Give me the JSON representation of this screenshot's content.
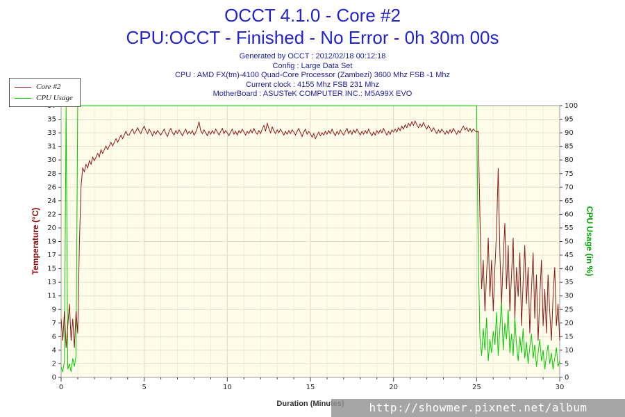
{
  "header": {
    "title_line1": "OCCT 4.1.0 - Core #2",
    "title_line2": "CPU:OCCT - Finished - No Error - 0h 30m 00s",
    "info_lines": [
      "Generated by OCCT : 2012/02/18 00:12:18",
      "Config : Large Data Set",
      "CPU : AMD FX(tm)-4100 Quad-Core Processor (Zambezi) 3600 Mhz FSB -1 Mhz",
      "Current clock : 4155 Mhz FSB 231 Mhz",
      "MotherBoard : ASUSTeK COMPUTER INC.: M5A99X EVO"
    ]
  },
  "legend": {
    "items": [
      {
        "label": "Core #2",
        "color": "#8b1a1a"
      },
      {
        "label": "CPU Usage",
        "color": "#00cc00"
      }
    ]
  },
  "watermark": {
    "text": "http://showmer.pixnet.net/album"
  },
  "chart_data": {
    "type": "line",
    "title": "OCCT 4.1.0 - Core #2",
    "subtitle": "CPU:OCCT - Finished - No Error - 0h 30m 00s",
    "plot_bg": "#fffdea",
    "grid": true,
    "legend_position": "top-left",
    "x_axis": {
      "label": "Duration (Minutes)",
      "min": 0,
      "max": 30,
      "major_ticks": [
        0,
        5,
        10,
        15,
        20,
        25,
        30
      ],
      "minor_step": 1
    },
    "y_left": {
      "label": "Temperature (°C)",
      "min": 0,
      "max": 37,
      "color": "#8b0000",
      "ticks": [
        0,
        2,
        4,
        6,
        7,
        9,
        11,
        13,
        15,
        17,
        19,
        20,
        22,
        24,
        26,
        28,
        30,
        31,
        33,
        35,
        37
      ]
    },
    "y_right": {
      "label": "CPU Usage (in %)",
      "min": 0,
      "max": 100,
      "color": "#00a400",
      "ticks": [
        0,
        5,
        10,
        15,
        20,
        25,
        30,
        35,
        40,
        45,
        50,
        55,
        60,
        65,
        70,
        75,
        80,
        85,
        90,
        95,
        100
      ]
    },
    "series": [
      {
        "name": "Core #2",
        "axis": "left",
        "color": "#8b1a1a",
        "t_start": 0,
        "dt": 0.1,
        "values": [
          8,
          5,
          9,
          4,
          7,
          10,
          5,
          8,
          4,
          9,
          6,
          18,
          26,
          28.5,
          28,
          29,
          28.5,
          29.5,
          29,
          30,
          29.5,
          30,
          30.5,
          30,
          31,
          30.5,
          31,
          31.5,
          31,
          31.5,
          32,
          31.5,
          32,
          32.5,
          32,
          32.5,
          33,
          32.5,
          33,
          33.5,
          33,
          33,
          33.5,
          33.8,
          33.2,
          33.5,
          34,
          33.5,
          33.2,
          33.8,
          34.2,
          33.6,
          33.2,
          33.8,
          33.4,
          32.9,
          33.5,
          33.1,
          33.6,
          33.3,
          33,
          33.4,
          33.8,
          33.2,
          32.8,
          33.5,
          33.9,
          33.3,
          33,
          33.6,
          33.2,
          33.7,
          33.3,
          32.9,
          33.4,
          33.8,
          33.1,
          33.5,
          33.2,
          33.6,
          33,
          33.4,
          34,
          34.8,
          33.6,
          33.2,
          33.7,
          33.3,
          32.9,
          33.5,
          33.1,
          33.6,
          33.2,
          33.8,
          33.4,
          33,
          33.5,
          33.9,
          33.2,
          33.6,
          33.3,
          32.9,
          33.4,
          33.8,
          33.1,
          33.5,
          33,
          33.6,
          33.3,
          33.8,
          33.4,
          33,
          33.5,
          33.2,
          33.7,
          33.3,
          33.9,
          33.4,
          33.1,
          33.6,
          33.2,
          33.8,
          34.3,
          33.5,
          34.6,
          33.9,
          33.3,
          34.1,
          33.6,
          33.2,
          33.7,
          33.3,
          33.8,
          33.4,
          33,
          33.5,
          33.1,
          33.6,
          33.2,
          33.7,
          33.4,
          33,
          33.5,
          33.9,
          33.3,
          32.8,
          33.4,
          33.8,
          33.1,
          33.5,
          33.2,
          32.7,
          33.2,
          32.5,
          33,
          33.4,
          32.9,
          33.3,
          33,
          33.5,
          33.1,
          33.6,
          33.2,
          33.8,
          33.3,
          32.9,
          33.5,
          33.1,
          33.7,
          33.3,
          33,
          33.5,
          33.9,
          33.2,
          33.6,
          33.1,
          33.7,
          33.3,
          33.8,
          33.4,
          33,
          33.5,
          33.1,
          33.6,
          33.2,
          33.8,
          33.3,
          32.9,
          33.4,
          33,
          33.6,
          33.2,
          33.7,
          33.3,
          33.9,
          33.4,
          33,
          33.5,
          33.1,
          33.7,
          33.4,
          33.8,
          33.4,
          34,
          33.6,
          34.2,
          33.8,
          34.4,
          34,
          34.6,
          34.2,
          34.8,
          34.3,
          34.9,
          34.4,
          34,
          34.5,
          34.1,
          34.7,
          34.2,
          33.8,
          34.3,
          33.9,
          33.5,
          34,
          33.6,
          33.2,
          33.7,
          33.3,
          33.8,
          33.5,
          33.1,
          33.6,
          33.2,
          33.7,
          33.3,
          33.9,
          33.5,
          33.1,
          33.6,
          33.3,
          33.8,
          34.2,
          33.7,
          34,
          33.5,
          33.9,
          33.4,
          33.8,
          33.6,
          33.4,
          33.5,
          22,
          12,
          16,
          9,
          14,
          19,
          11,
          16,
          9,
          15,
          20,
          28.5,
          17,
          10,
          16,
          21,
          12,
          18,
          9,
          14,
          19,
          8,
          15,
          11,
          17,
          7,
          13,
          18,
          10,
          15,
          6,
          12,
          17,
          8,
          14,
          5,
          11,
          16,
          7,
          12,
          6,
          14,
          9,
          5,
          11,
          15,
          7,
          10,
          5
        ]
      },
      {
        "name": "CPU Usage",
        "axis": "right",
        "color": "#00cc00",
        "t_start": 0,
        "dt": 0.1,
        "values": [
          4,
          2,
          6,
          100,
          3,
          5,
          2,
          7,
          4,
          8,
          100,
          100,
          100,
          100,
          100,
          100,
          100,
          100,
          100,
          100,
          100,
          100,
          100,
          100,
          100,
          100,
          100,
          100,
          100,
          100,
          100,
          100,
          100,
          100,
          100,
          100,
          100,
          100,
          100,
          100,
          100,
          100,
          100,
          100,
          100,
          100,
          100,
          100,
          100,
          100,
          100,
          100,
          100,
          100,
          100,
          100,
          100,
          100,
          100,
          100,
          100,
          100,
          100,
          100,
          100,
          100,
          100,
          100,
          100,
          100,
          100,
          100,
          100,
          100,
          100,
          100,
          100,
          100,
          100,
          100,
          100,
          100,
          100,
          100,
          100,
          100,
          100,
          100,
          100,
          100,
          100,
          100,
          100,
          100,
          100,
          100,
          100,
          100,
          100,
          100,
          100,
          100,
          100,
          100,
          100,
          100,
          100,
          100,
          100,
          100,
          100,
          100,
          100,
          100,
          100,
          100,
          100,
          100,
          100,
          100,
          100,
          100,
          100,
          100,
          100,
          100,
          100,
          100,
          100,
          100,
          100,
          100,
          100,
          100,
          100,
          100,
          100,
          100,
          100,
          100,
          100,
          100,
          100,
          100,
          100,
          100,
          100,
          100,
          100,
          100,
          100,
          100,
          100,
          100,
          100,
          100,
          100,
          100,
          100,
          100,
          100,
          100,
          100,
          100,
          100,
          100,
          100,
          100,
          100,
          100,
          100,
          100,
          100,
          100,
          100,
          100,
          100,
          100,
          100,
          100,
          100,
          100,
          100,
          100,
          100,
          100,
          100,
          100,
          100,
          100,
          100,
          100,
          100,
          100,
          100,
          100,
          100,
          100,
          100,
          100,
          100,
          100,
          100,
          100,
          100,
          100,
          100,
          100,
          100,
          100,
          100,
          100,
          100,
          100,
          100,
          100,
          100,
          100,
          100,
          100,
          100,
          100,
          100,
          100,
          100,
          100,
          100,
          100,
          100,
          100,
          100,
          100,
          100,
          100,
          100,
          100,
          100,
          100,
          100,
          100,
          100,
          100,
          100,
          100,
          100,
          100,
          100,
          100,
          100,
          100,
          100,
          45,
          15,
          8,
          18,
          10,
          22,
          6,
          14,
          9,
          17,
          12,
          24,
          8,
          18,
          28,
          10,
          20,
          14,
          25,
          9,
          16,
          8,
          22,
          12,
          6,
          15,
          9,
          18,
          7,
          13,
          5,
          11,
          16,
          7,
          12,
          4,
          9,
          14,
          6,
          10,
          3,
          8,
          12,
          5,
          9,
          3,
          7,
          11,
          4,
          6
        ]
      }
    ]
  }
}
